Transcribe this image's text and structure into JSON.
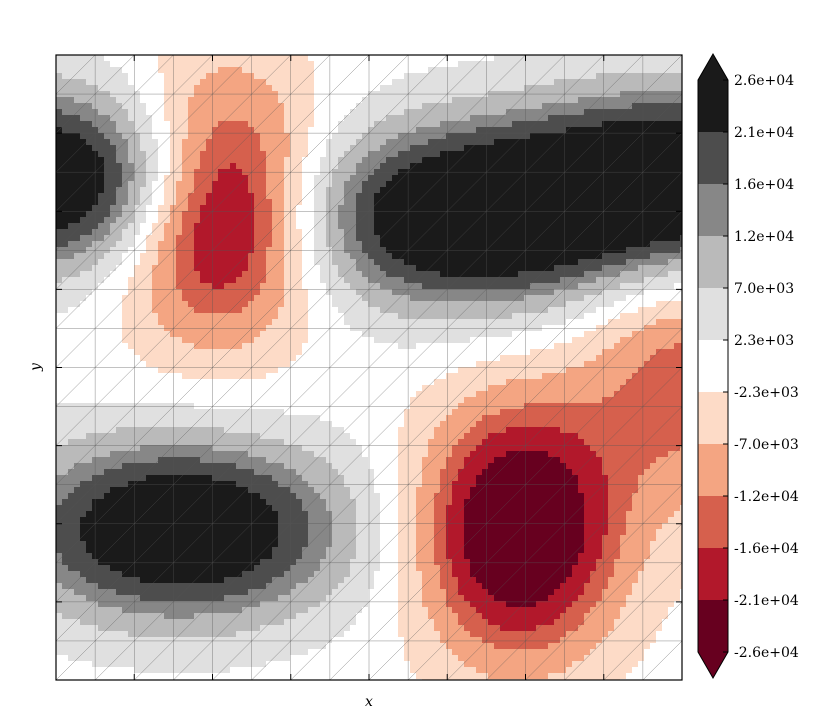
{
  "chart_data": {
    "type": "heatmap",
    "subtype": "filled-contour over triangular grid",
    "title": "",
    "xlabel": "x",
    "ylabel": "y",
    "x_tick_labels_shown": false,
    "y_tick_labels_shown": false,
    "colormap": "RdGy",
    "colorbar": {
      "placement": "right",
      "extend": "both",
      "tick_labels": [
        "2.6e+04",
        "2.1e+04",
        "1.6e+04",
        "1.2e+04",
        "7.0e+03",
        "2.3e+03",
        "-2.3e+03",
        "-7.0e+03",
        "-1.2e+04",
        "-1.6e+04",
        "-2.1e+04",
        "-2.6e+04"
      ],
      "levels": [
        26000,
        21000,
        16000,
        12000,
        7000,
        2300,
        -2300,
        -7000,
        -12000,
        -16000,
        -21000,
        -26000
      ],
      "band_colors": [
        "#1a1a1a",
        "#4d4d4d",
        "#878787",
        "#bababa",
        "#e0e0e0",
        "#ffffff",
        "#fddbc7",
        "#f4a582",
        "#d6604d",
        "#b2182b",
        "#67001f"
      ],
      "extend_top_color": "#1a1a1a",
      "extend_bottom_color": "#67001f"
    },
    "field": {
      "peaks": [
        {
          "role": "min",
          "center": [
            0.26,
            0.24
          ],
          "amplitude": -26000
        },
        {
          "role": "min",
          "center": [
            0.74,
            0.76
          ],
          "amplitude": -26000
        },
        {
          "role": "max",
          "center": [
            0.65,
            0.26
          ],
          "amplitude": 26000
        },
        {
          "role": "max",
          "center": [
            0.2,
            0.76
          ],
          "amplitude": 26000
        },
        {
          "role": "max",
          "center": [
            0.0,
            0.2
          ],
          "amplitude": 26000
        },
        {
          "role": "max",
          "center": [
            1.0,
            0.2
          ],
          "amplitude": 26000
        },
        {
          "role": "min",
          "center": [
            1.0,
            0.52
          ],
          "amplitude": -12000
        }
      ]
    },
    "grid": true
  }
}
